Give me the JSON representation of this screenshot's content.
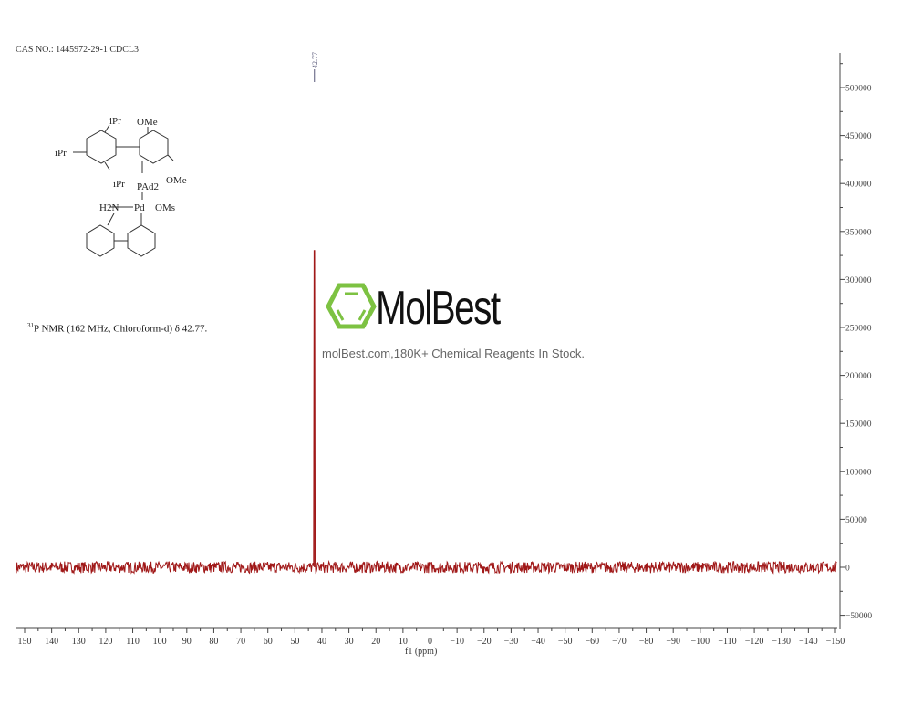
{
  "header": {
    "cas_line": "CAS NO.: 1445972-29-1 CDCL3"
  },
  "caption": {
    "nucleus_sup": "31",
    "text": "P NMR (162 MHz, Chloroform-d) δ 42.77."
  },
  "structure": {
    "labels": [
      "iPr",
      "iPr",
      "iPr",
      "OMe",
      "OMe",
      "PAd2",
      "H2N",
      "Pd",
      "OMs"
    ]
  },
  "watermark": {
    "name": "MolBest",
    "tagline": "molBest.com,180K+ Chemical Reagents In Stock.",
    "logo_color": "#7dc242"
  },
  "chart_data": {
    "type": "line",
    "title": "",
    "xlabel": "f1 (ppm)",
    "ylabel": "",
    "xlim": [
      150,
      -150
    ],
    "ylim": [
      -60000,
      540000
    ],
    "x_ticks": [
      150,
      140,
      130,
      120,
      110,
      100,
      90,
      80,
      70,
      60,
      50,
      40,
      30,
      20,
      10,
      0,
      -10,
      -20,
      -30,
      -40,
      -50,
      -60,
      -70,
      -80,
      -90,
      -100,
      -110,
      -120,
      -130,
      -140,
      -150
    ],
    "x_tick_labels": [
      "150",
      "140",
      "130",
      "120",
      "110",
      "100",
      "90",
      "80",
      "70",
      "60",
      "50",
      "40",
      "30",
      "20",
      "10",
      "0",
      "−10",
      "−20",
      "−30",
      "−40",
      "−50",
      "−60",
      "−70",
      "−80",
      "−90",
      "−100",
      "−110",
      "−120",
      "−130",
      "−140",
      "−150"
    ],
    "y_ticks": [
      -50000,
      0,
      50000,
      100000,
      150000,
      200000,
      250000,
      300000,
      350000,
      400000,
      450000,
      500000
    ],
    "y_tick_labels": [
      "−50000",
      "0",
      "50000",
      "100000",
      "150000",
      "200000",
      "250000",
      "300000",
      "350000",
      "400000",
      "450000",
      "500000"
    ],
    "y_axis_side": "right",
    "grid": false,
    "series": [
      {
        "color": "#a01818",
        "peaks": [
          {
            "ppm": 42.77,
            "intensity": 330000
          }
        ],
        "baseline_noise_amplitude": 6000
      }
    ],
    "peak_labels": [
      {
        "ppm": 42.77,
        "label": "42.77"
      }
    ]
  }
}
